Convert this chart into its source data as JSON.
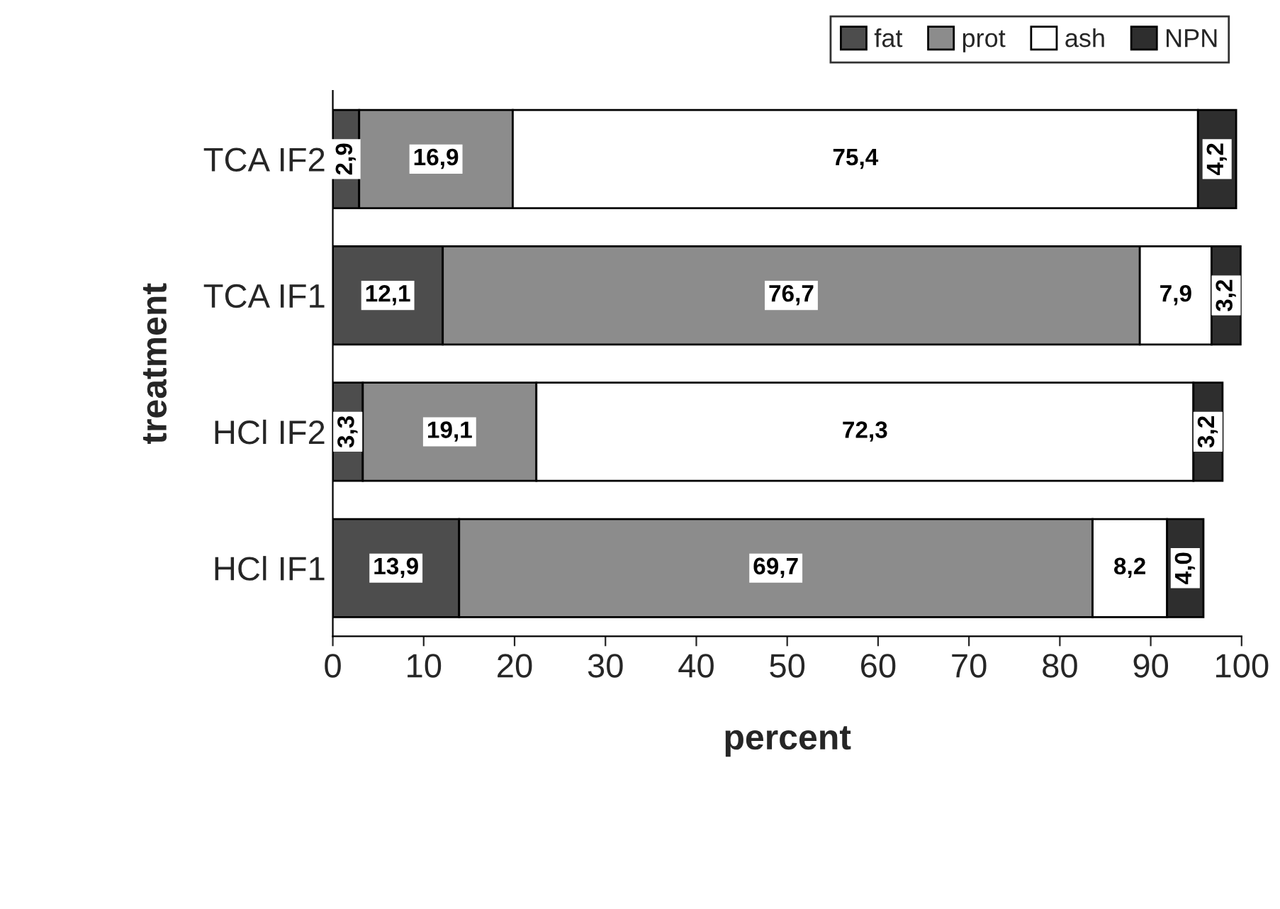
{
  "chart_data": {
    "type": "bar",
    "orientation": "horizontal",
    "stacked": true,
    "xlabel": "percent",
    "ylabel": "treatment",
    "categories": [
      "TCA IF2",
      "TCA IF1",
      "HCl IF2",
      "HCl IF1"
    ],
    "series": [
      {
        "name": "fat",
        "color": "#4d4d4d",
        "values": [
          2.9,
          12.1,
          3.3,
          13.9
        ],
        "value_labels": [
          "2,9",
          "12,1",
          "3,3",
          "13,9"
        ]
      },
      {
        "name": "prot",
        "color": "#8c8c8c",
        "values": [
          16.9,
          76.7,
          19.1,
          69.7
        ],
        "value_labels": [
          "16,9",
          "76,7",
          "19,1",
          "69,7"
        ]
      },
      {
        "name": "ash",
        "color": "#ffffff",
        "values": [
          75.4,
          7.9,
          72.3,
          8.2
        ],
        "value_labels": [
          "75,4",
          "7,9",
          "72,3",
          "8,2"
        ]
      },
      {
        "name": "NPN",
        "color": "#2e2e2e",
        "values": [
          4.2,
          3.2,
          3.2,
          4.0
        ],
        "value_labels": [
          "4,2",
          "3,2",
          "3,2",
          "4,0"
        ]
      }
    ],
    "xlim": [
      0,
      100
    ],
    "xticks": [
      0,
      10,
      20,
      30,
      40,
      50,
      60,
      70,
      80,
      90,
      100
    ],
    "legend": "top right",
    "grid": false
  }
}
